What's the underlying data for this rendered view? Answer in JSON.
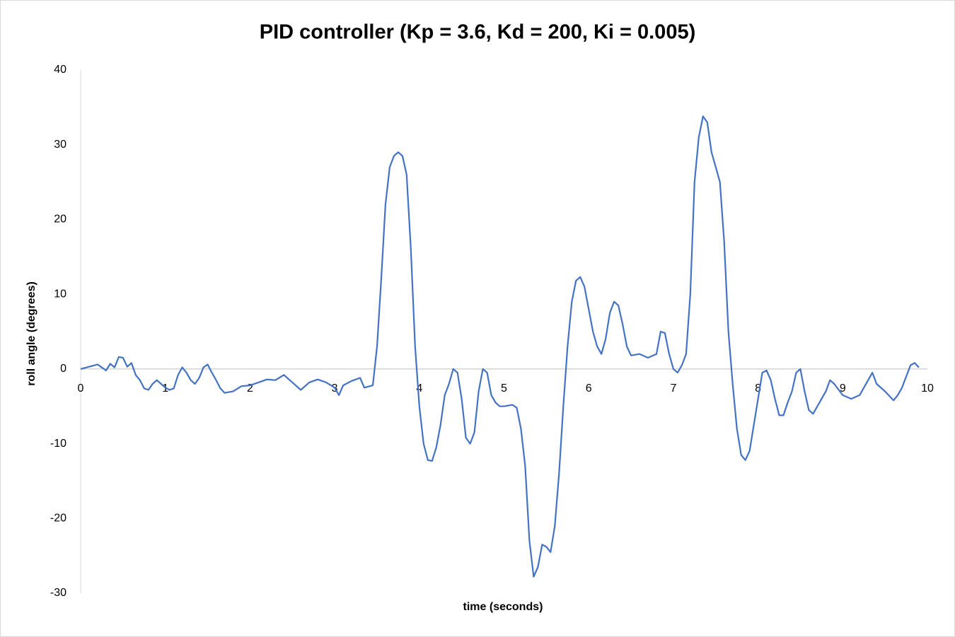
{
  "chart_data": {
    "type": "line",
    "title": "PID controller (Kp = 3.6, Kd = 200, Ki = 0.005)",
    "x_label": "time (seconds)",
    "y_label": "roll angle (degrees)",
    "xlim": [
      0,
      10
    ],
    "xticks": [
      0,
      1,
      2,
      3,
      4,
      5,
      6,
      7,
      8,
      9,
      10
    ],
    "ylim": [
      -30,
      40
    ],
    "yticks": [
      -30,
      -20,
      -10,
      0,
      10,
      20,
      30,
      40
    ],
    "x": [
      0,
      0.1,
      0.2,
      0.25,
      0.3,
      0.35,
      0.4,
      0.45,
      0.5,
      0.55,
      0.6,
      0.65,
      0.7,
      0.75,
      0.8,
      0.85,
      0.9,
      0.95,
      1.0,
      1.05,
      1.1,
      1.15,
      1.2,
      1.25,
      1.3,
      1.35,
      1.4,
      1.45,
      1.5,
      1.55,
      1.6,
      1.65,
      1.7,
      1.8,
      1.9,
      2.0,
      2.1,
      2.2,
      2.3,
      2.4,
      2.5,
      2.6,
      2.7,
      2.8,
      2.9,
      3.0,
      3.05,
      3.1,
      3.2,
      3.3,
      3.35,
      3.45,
      3.5,
      3.55,
      3.6,
      3.65,
      3.7,
      3.75,
      3.8,
      3.85,
      3.9,
      3.95,
      4.0,
      4.05,
      4.1,
      4.15,
      4.2,
      4.25,
      4.3,
      4.35,
      4.4,
      4.45,
      4.5,
      4.55,
      4.6,
      4.65,
      4.7,
      4.75,
      4.8,
      4.85,
      4.9,
      4.95,
      5.0,
      5.1,
      5.15,
      5.2,
      5.25,
      5.3,
      5.35,
      5.4,
      5.45,
      5.5,
      5.55,
      5.6,
      5.65,
      5.7,
      5.75,
      5.8,
      5.85,
      5.9,
      5.95,
      6.0,
      6.05,
      6.1,
      6.15,
      6.2,
      6.25,
      6.3,
      6.35,
      6.4,
      6.45,
      6.5,
      6.6,
      6.7,
      6.8,
      6.85,
      6.9,
      6.95,
      7.0,
      7.05,
      7.1,
      7.15,
      7.2,
      7.25,
      7.3,
      7.35,
      7.4,
      7.45,
      7.5,
      7.55,
      7.6,
      7.65,
      7.7,
      7.75,
      7.8,
      7.85,
      7.9,
      7.95,
      8.0,
      8.05,
      8.1,
      8.15,
      8.2,
      8.25,
      8.3,
      8.35,
      8.4,
      8.45,
      8.5,
      8.55,
      8.6,
      8.65,
      8.7,
      8.8,
      8.85,
      8.9,
      9.0,
      9.1,
      9.2,
      9.3,
      9.35,
      9.4,
      9.5,
      9.6,
      9.65,
      9.7,
      9.75,
      9.8,
      9.85,
      9.9
    ],
    "series": [
      {
        "name": "roll angle",
        "color": "#4472c4",
        "values": [
          0,
          0.3,
          0.6,
          0.2,
          -0.2,
          0.7,
          0.2,
          1.6,
          1.5,
          0.3,
          0.8,
          -0.8,
          -1.5,
          -2.6,
          -2.8,
          -2,
          -1.5,
          -2,
          -2.5,
          -2.8,
          -2.6,
          -0.8,
          0.2,
          -0.5,
          -1.5,
          -2,
          -1.2,
          0.2,
          0.6,
          -0.5,
          -1.5,
          -2.6,
          -3.2,
          -3.0,
          -2.3,
          -2.2,
          -1.8,
          -1.4,
          -1.5,
          -0.8,
          -1.8,
          -2.8,
          -1.8,
          -1.4,
          -1.8,
          -2.5,
          -3.5,
          -2.2,
          -1.6,
          -1.2,
          -2.5,
          -2.2,
          3,
          12,
          22,
          27,
          28.5,
          29,
          28.5,
          26,
          16,
          3,
          -5,
          -10,
          -12.2,
          -12.3,
          -10.5,
          -7.5,
          -3.5,
          -2,
          0,
          -0.5,
          -4,
          -9.2,
          -10,
          -8.5,
          -3,
          0,
          -0.5,
          -3.5,
          -4.5,
          -5,
          -5,
          -4.8,
          -5.2,
          -8,
          -13,
          -23,
          -27.8,
          -26.5,
          -23.5,
          -23.8,
          -24.5,
          -21,
          -14,
          -5,
          3,
          9,
          11.8,
          12.3,
          11,
          8,
          5,
          3,
          2,
          4,
          7.5,
          9,
          8.5,
          6,
          3,
          1.8,
          2,
          1.5,
          2,
          5,
          4.8,
          2,
          0,
          -0.5,
          0.5,
          2,
          10,
          25,
          31,
          33.8,
          33,
          29,
          27,
          25,
          17,
          5,
          -2,
          -8,
          -11.5,
          -12.2,
          -11,
          -7.5,
          -4,
          -0.5,
          -0.2,
          -1.5,
          -4,
          -6.2,
          -6.2,
          -4.5,
          -3,
          -0.5,
          0,
          -3,
          -5.5,
          -6,
          -5,
          -3,
          -1.5,
          -2,
          -3.5,
          -4,
          -3.5,
          -1.5,
          -0.5,
          -2,
          -3,
          -4.2,
          -3.5,
          -2.5,
          -1,
          0.5,
          0.8,
          0.2
        ]
      }
    ]
  }
}
